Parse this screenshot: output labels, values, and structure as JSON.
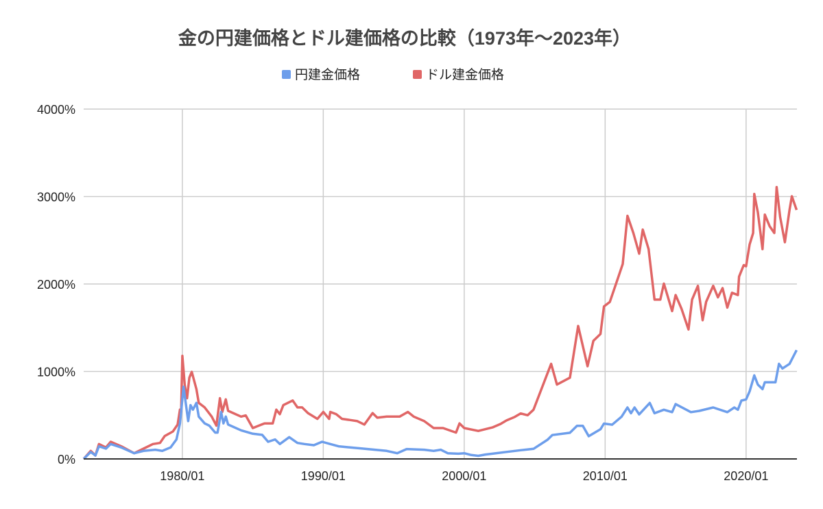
{
  "chart_data": {
    "type": "line",
    "title": "金の円建価格とドル建価格の比較（1973年〜2023年）",
    "xlabel": "",
    "ylabel": "",
    "x_range": [
      "1973/01",
      "2023/08"
    ],
    "ylim": [
      0,
      4000
    ],
    "y_unit": "%",
    "y_ticks": [
      "0%",
      "1000%",
      "2000%",
      "3000%",
      "4000%"
    ],
    "y_tick_values": [
      0,
      1000,
      2000,
      3000,
      4000
    ],
    "x_ticks": [
      "1980/01",
      "1990/01",
      "2000/01",
      "2010/01",
      "2020/01"
    ],
    "grid": true,
    "legend_position": "top",
    "series": [
      {
        "name": "円建金価格",
        "color": "#6d9eeb",
        "points": [
          [
            "1973/01",
            0
          ],
          [
            "1973/07",
            79
          ],
          [
            "1973/11",
            39
          ],
          [
            "1974/02",
            144
          ],
          [
            "1974/08",
            118
          ],
          [
            "1974/12",
            170
          ],
          [
            "1975/09",
            131
          ],
          [
            "1976/08",
            65
          ],
          [
            "1977/04",
            92
          ],
          [
            "1978/02",
            105
          ],
          [
            "1978/08",
            92
          ],
          [
            "1979/03",
            131
          ],
          [
            "1979/08",
            223
          ],
          [
            "1979/11",
            406
          ],
          [
            "1979/12",
            537
          ],
          [
            "1980/02",
            825
          ],
          [
            "1980/06",
            432
          ],
          [
            "1980/08",
            615
          ],
          [
            "1980/10",
            563
          ],
          [
            "1981/01",
            641
          ],
          [
            "1981/03",
            484
          ],
          [
            "1981/08",
            406
          ],
          [
            "1981/12",
            380
          ],
          [
            "1982/05",
            301
          ],
          [
            "1982/07",
            301
          ],
          [
            "1982/10",
            537
          ],
          [
            "1982/12",
            406
          ],
          [
            "1983/02",
            484
          ],
          [
            "1983/04",
            393
          ],
          [
            "1984/03",
            327
          ],
          [
            "1985/01",
            288
          ],
          [
            "1985/09",
            275
          ],
          [
            "1986/02",
            196
          ],
          [
            "1986/08",
            223
          ],
          [
            "1986/12",
            170
          ],
          [
            "1987/08",
            249
          ],
          [
            "1988/03",
            183
          ],
          [
            "1988/09",
            170
          ],
          [
            "1989/05",
            157
          ],
          [
            "1989/12",
            196
          ],
          [
            "1990/07",
            170
          ],
          [
            "1991/02",
            144
          ],
          [
            "1991/12",
            131
          ],
          [
            "1992/11",
            118
          ],
          [
            "1993/09",
            105
          ],
          [
            "1994/07",
            92
          ],
          [
            "1995/04",
            65
          ],
          [
            "1995/12",
            113
          ],
          [
            "1997/03",
            105
          ],
          [
            "1997/11",
            92
          ],
          [
            "1998/05",
            105
          ],
          [
            "1998/11",
            65
          ],
          [
            "1999/08",
            60
          ],
          [
            "2000/01",
            65
          ],
          [
            "2000/07",
            45
          ],
          [
            "2001/01",
            35
          ],
          [
            "2001/07",
            50
          ],
          [
            "2002/01",
            60
          ],
          [
            "2003/01",
            80
          ],
          [
            "2004/01",
            100
          ],
          [
            "2004/12",
            115
          ],
          [
            "2005/12",
            220
          ],
          [
            "2006/04",
            273
          ],
          [
            "2007/07",
            299
          ],
          [
            "2008/01",
            378
          ],
          [
            "2008/06",
            378
          ],
          [
            "2008/11",
            260
          ],
          [
            "2009/09",
            339
          ],
          [
            "2009/12",
            404
          ],
          [
            "2010/07",
            391
          ],
          [
            "2011/03",
            483
          ],
          [
            "2011/08",
            588
          ],
          [
            "2011/11",
            522
          ],
          [
            "2012/02",
            588
          ],
          [
            "2012/06",
            509
          ],
          [
            "2013/03",
            640
          ],
          [
            "2013/07",
            522
          ],
          [
            "2014/03",
            562
          ],
          [
            "2014/10",
            535
          ],
          [
            "2015/01",
            627
          ],
          [
            "2016/02",
            535
          ],
          [
            "2016/09",
            549
          ],
          [
            "2017/09",
            588
          ],
          [
            "2018/09",
            535
          ],
          [
            "2019/03",
            588
          ],
          [
            "2019/06",
            562
          ],
          [
            "2019/09",
            667
          ],
          [
            "2020/01",
            680
          ],
          [
            "2020/04",
            772
          ],
          [
            "2020/08",
            955
          ],
          [
            "2020/11",
            850
          ],
          [
            "2021/03",
            798
          ],
          [
            "2021/05",
            877
          ],
          [
            "2022/02",
            877
          ],
          [
            "2022/05",
            1087
          ],
          [
            "2022/08",
            1034
          ],
          [
            "2023/02",
            1087
          ],
          [
            "2023/06",
            1192
          ],
          [
            "2023/08",
            1244
          ]
        ]
      },
      {
        "name": "ドル建金価格",
        "color": "#e06666",
        "points": [
          [
            "1973/01",
            0
          ],
          [
            "1973/07",
            92
          ],
          [
            "1973/11",
            39
          ],
          [
            "1974/02",
            170
          ],
          [
            "1974/08",
            131
          ],
          [
            "1974/12",
            196
          ],
          [
            "1975/09",
            144
          ],
          [
            "1976/08",
            65
          ],
          [
            "1977/04",
            118
          ],
          [
            "1977/12",
            170
          ],
          [
            "1978/06",
            183
          ],
          [
            "1978/10",
            262
          ],
          [
            "1979/05",
            314
          ],
          [
            "1979/09",
            393
          ],
          [
            "1979/11",
            563
          ],
          [
            "1979/12",
            537
          ],
          [
            "1980/01",
            1178
          ],
          [
            "1980/03",
            851
          ],
          [
            "1980/05",
            694
          ],
          [
            "1980/07",
            929
          ],
          [
            "1980/09",
            995
          ],
          [
            "1981/01",
            798
          ],
          [
            "1981/03",
            641
          ],
          [
            "1981/08",
            589
          ],
          [
            "1982/02",
            484
          ],
          [
            "1982/06",
            380
          ],
          [
            "1982/09",
            694
          ],
          [
            "1982/11",
            537
          ],
          [
            "1983/02",
            681
          ],
          [
            "1983/04",
            550
          ],
          [
            "1984/03",
            484
          ],
          [
            "1984/07",
            497
          ],
          [
            "1985/01",
            353
          ],
          [
            "1985/11",
            406
          ],
          [
            "1986/06",
            406
          ],
          [
            "1986/09",
            563
          ],
          [
            "1986/12",
            511
          ],
          [
            "1987/03",
            615
          ],
          [
            "1987/11",
            668
          ],
          [
            "1988/03",
            589
          ],
          [
            "1988/07",
            589
          ],
          [
            "1988/12",
            524
          ],
          [
            "1989/08",
            458
          ],
          [
            "1990/01",
            537
          ],
          [
            "1990/06",
            458
          ],
          [
            "1990/07",
            537
          ],
          [
            "1990/12",
            511
          ],
          [
            "1991/05",
            458
          ],
          [
            "1991/12",
            445
          ],
          [
            "1992/06",
            432
          ],
          [
            "1992/12",
            393
          ],
          [
            "1993/07",
            524
          ],
          [
            "1993/11",
            471
          ],
          [
            "1994/07",
            484
          ],
          [
            "1995/06",
            484
          ],
          [
            "1996/01",
            537
          ],
          [
            "1996/06",
            484
          ],
          [
            "1997/03",
            432
          ],
          [
            "1997/11",
            353
          ],
          [
            "1998/07",
            353
          ],
          [
            "1999/06",
            301
          ],
          [
            "1999/09",
            406
          ],
          [
            "2000/01",
            353
          ],
          [
            "2001/01",
            320
          ],
          [
            "2002/01",
            360
          ],
          [
            "2002/08",
            400
          ],
          [
            "2003/01",
            440
          ],
          [
            "2003/08",
            480
          ],
          [
            "2004/01",
            520
          ],
          [
            "2004/07",
            500
          ],
          [
            "2004/12",
            562
          ],
          [
            "2006/03",
            1087
          ],
          [
            "2006/08",
            850
          ],
          [
            "2007/07",
            929
          ],
          [
            "2008/02",
            1520
          ],
          [
            "2008/10",
            1060
          ],
          [
            "2009/03",
            1350
          ],
          [
            "2009/09",
            1428
          ],
          [
            "2009/12",
            1743
          ],
          [
            "2010/05",
            1795
          ],
          [
            "2010/11",
            2032
          ],
          [
            "2011/04",
            2229
          ],
          [
            "2011/08",
            2780
          ],
          [
            "2012/01",
            2583
          ],
          [
            "2012/06",
            2347
          ],
          [
            "2012/09",
            2622
          ],
          [
            "2013/02",
            2399
          ],
          [
            "2013/07",
            1822
          ],
          [
            "2013/12",
            1822
          ],
          [
            "2014/03",
            2005
          ],
          [
            "2014/10",
            1690
          ],
          [
            "2015/01",
            1874
          ],
          [
            "2015/06",
            1717
          ],
          [
            "2015/12",
            1480
          ],
          [
            "2016/03",
            1822
          ],
          [
            "2016/08",
            1979
          ],
          [
            "2016/12",
            1586
          ],
          [
            "2017/03",
            1796
          ],
          [
            "2017/09",
            1979
          ],
          [
            "2018/01",
            1848
          ],
          [
            "2018/05",
            1953
          ],
          [
            "2018/09",
            1730
          ],
          [
            "2019/01",
            1900
          ],
          [
            "2019/06",
            1874
          ],
          [
            "2019/07",
            2084
          ],
          [
            "2019/11",
            2216
          ],
          [
            "2020/01",
            2202
          ],
          [
            "2020/04",
            2452
          ],
          [
            "2020/07",
            2583
          ],
          [
            "2020/08",
            3029
          ],
          [
            "2020/11",
            2819
          ],
          [
            "2021/03",
            2399
          ],
          [
            "2021/05",
            2793
          ],
          [
            "2021/09",
            2662
          ],
          [
            "2022/01",
            2583
          ],
          [
            "2022/03",
            3108
          ],
          [
            "2022/06",
            2767
          ],
          [
            "2022/10",
            2478
          ],
          [
            "2023/02",
            2846
          ],
          [
            "2023/04",
            3003
          ],
          [
            "2023/08",
            2846
          ]
        ]
      }
    ]
  }
}
